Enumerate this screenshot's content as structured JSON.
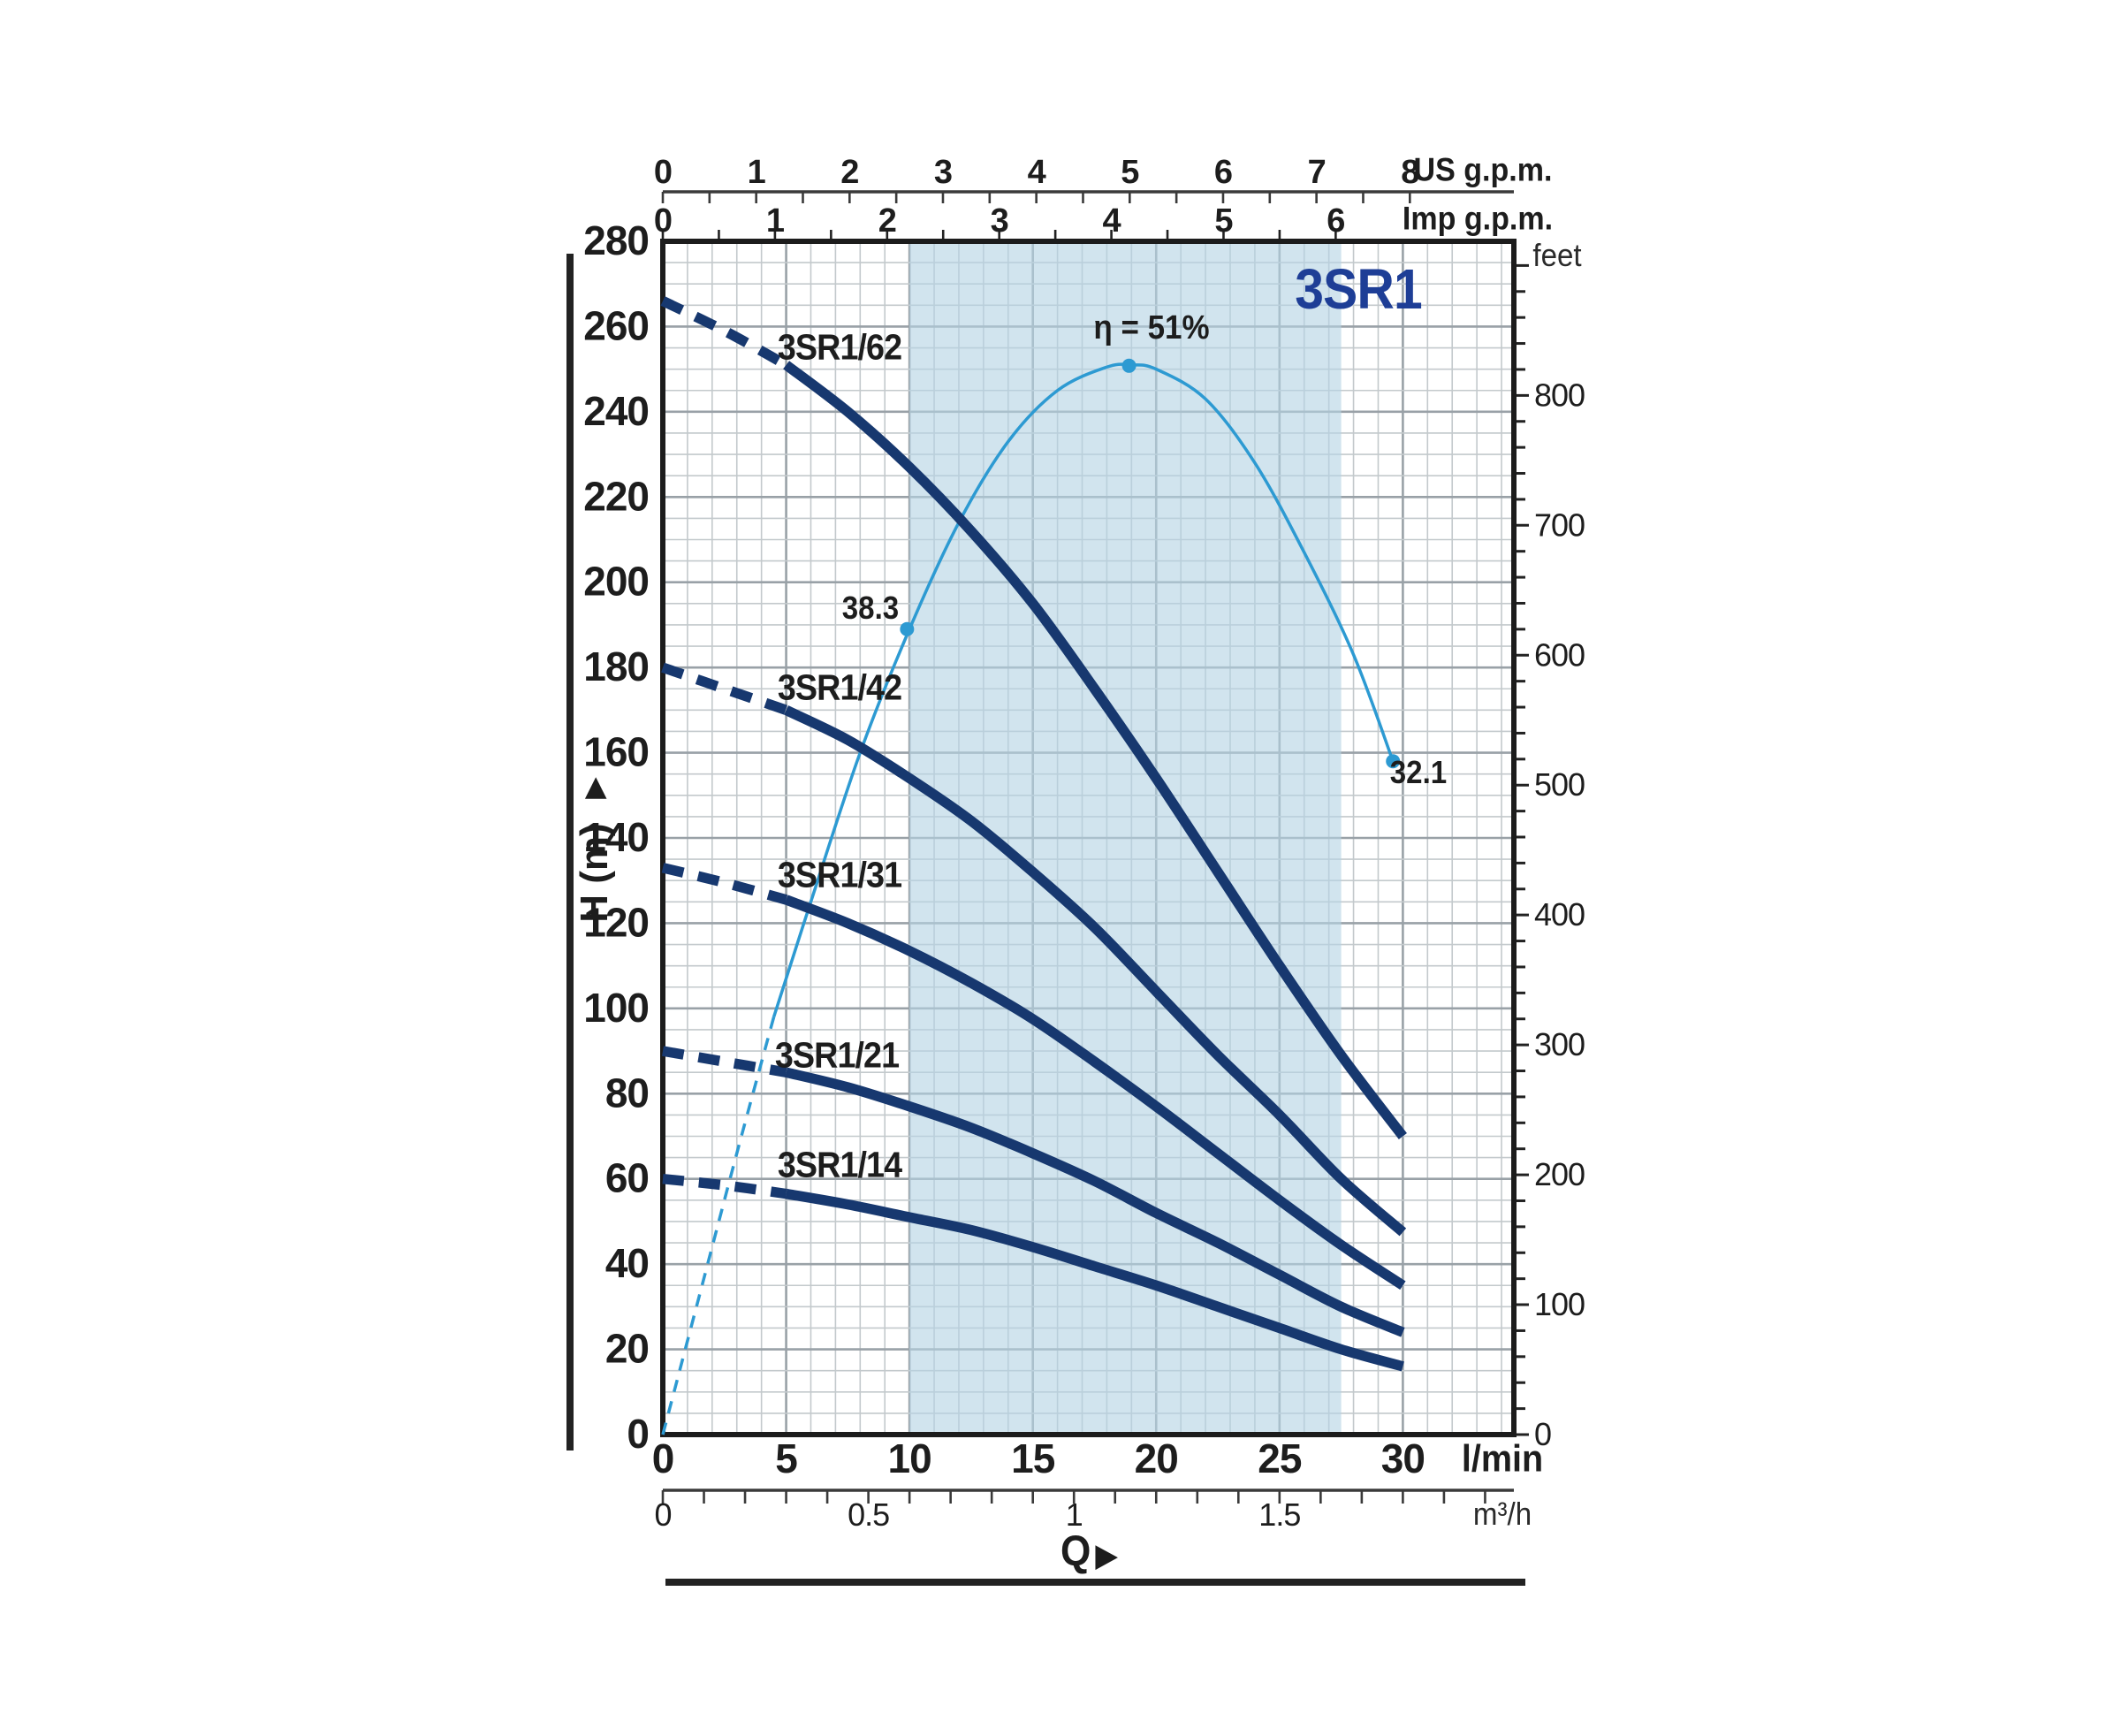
{
  "chart_data": {
    "type": "line",
    "title": "3SR1",
    "colors": {
      "pump_curve": "#17386f",
      "efficiency_curve": "#2d9ad2",
      "duty_band": "#b5d4e4",
      "grid_minor": "#c3c9cc",
      "grid_major": "#99a1a7",
      "border": "#1c1c1c",
      "title": "#1e3e96"
    },
    "axes": {
      "x_bottom_lmin": {
        "label": "l/min",
        "ticks": [
          0,
          5,
          10,
          15,
          20,
          25,
          30
        ],
        "minor_step": 1,
        "max": 34.5
      },
      "x_bottom_m3h": {
        "label": "m³/h",
        "tick_labels": [
          "0",
          "0.5",
          "1",
          "1.5"
        ],
        "tick_values": [
          0,
          0.5,
          1,
          1.5
        ],
        "lmin_per_unit": 16.6667,
        "minor_step": 0.1,
        "minor_max": 2.0
      },
      "x_top_us_gpm": {
        "label": "US g.p.m.",
        "ticks": [
          0,
          1,
          2,
          3,
          4,
          5,
          6,
          7,
          8
        ],
        "lmin_per_unit": 3.7854,
        "minor_step": 0.5
      },
      "x_top_imp_gpm": {
        "label": "Imp g.p.m.",
        "ticks": [
          0,
          1,
          2,
          3,
          4,
          5,
          6
        ],
        "lmin_per_unit": 4.5461,
        "minor_step": 0.5
      },
      "y_left_m": {
        "label": "H (m)",
        "ticks": [
          0,
          20,
          40,
          60,
          80,
          100,
          120,
          140,
          160,
          180,
          200,
          220,
          240,
          260,
          280
        ],
        "minor_step": 5,
        "max": 280
      },
      "y_right_feet": {
        "label": "feet",
        "ticks": [
          0,
          100,
          200,
          300,
          400,
          500,
          600,
          700,
          800
        ],
        "m_per_unit": 0.3048,
        "minor_step": 20,
        "minor_max": 900
      }
    },
    "duty_band_lmin": [
      10,
      27.5
    ],
    "q_lmin": [
      0,
      2.5,
      5,
      7.5,
      10,
      12.5,
      15,
      17.5,
      20,
      22.5,
      25,
      27.5,
      30
    ],
    "dash_until_q": 5,
    "series": [
      {
        "name": "3SR1/62",
        "label": "3SR1/62",
        "h_m": [
          266,
          259,
          251,
          240,
          227,
          212,
          195,
          175,
          154,
          132,
          110,
          89,
          70
        ]
      },
      {
        "name": "3SR1/42",
        "label": "3SR1/42",
        "h_m": [
          180,
          175,
          170,
          163,
          154,
          144,
          132,
          119,
          104,
          89,
          75,
          60,
          47.5
        ]
      },
      {
        "name": "3SR1/31",
        "label": "3SR1/31",
        "h_m": [
          133,
          129.5,
          125.5,
          120,
          113.5,
          106,
          97.5,
          87.5,
          77,
          66,
          55,
          44.5,
          35
        ]
      },
      {
        "name": "3SR1/21",
        "label": "3SR1/21",
        "h_m": [
          90,
          87.5,
          85,
          81.5,
          77,
          72,
          66,
          59.5,
          52,
          45,
          37.5,
          30,
          24
        ]
      },
      {
        "name": "3SR1/14",
        "label": "3SR1/14",
        "h_m": [
          60,
          58.5,
          56.5,
          54,
          51,
          48,
          44,
          39.5,
          35,
          30,
          25,
          20,
          16
        ]
      }
    ],
    "efficiency_curve": {
      "dashed": {
        "q": [
          0,
          1.5,
          3,
          4.5
        ],
        "h": [
          0,
          33,
          66,
          98
        ]
      },
      "solid": {
        "q": [
          4.5,
          6,
          8,
          10,
          12,
          14,
          16,
          18,
          19,
          20,
          22,
          24,
          26,
          28,
          29.6
        ],
        "h": [
          98,
          125,
          160,
          189,
          214,
          233,
          245,
          250.5,
          251,
          250,
          243,
          228,
          207,
          183,
          158
        ]
      },
      "points": [
        {
          "q": 9.9,
          "h": 189,
          "label": "38.3"
        },
        {
          "q": 18.9,
          "h": 250.8,
          "label": "η = 51%"
        },
        {
          "q": 29.6,
          "h": 158,
          "label": "32.1"
        }
      ]
    }
  },
  "icons": {
    "arrow_right": "▶"
  }
}
